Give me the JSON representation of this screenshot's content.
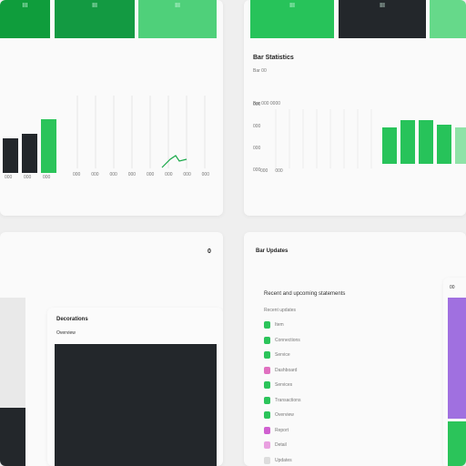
{
  "top_left": {
    "tabs": [
      "III",
      "III",
      "III"
    ],
    "bars": [
      38,
      43,
      59
    ],
    "bar_labels": [
      "000",
      "000",
      "000"
    ],
    "line_labels": [
      "000",
      "000",
      "000",
      "000",
      "000",
      "000",
      "000",
      "000"
    ]
  },
  "top_right": {
    "tabs": [
      "III",
      "III"
    ],
    "title": "Bar Statistics",
    "subtitle": "Bar 00",
    "chart_label": "Bar 000 0000",
    "y_labels": [
      "000",
      "000",
      "000",
      "000"
    ],
    "x_labels": [
      "000",
      "000"
    ],
    "bars": [
      40,
      48,
      48,
      43,
      40
    ]
  },
  "bottom_left": {
    "badge": "0",
    "card_title": "Decorations",
    "card_subtitle": "Overview"
  },
  "bottom_right": {
    "title": "Bar Updates",
    "subtitle": "Recent and upcoming statements",
    "section": "Recent updates",
    "items": [
      "Item",
      "Connections",
      "Service",
      "Dashboard",
      "Services",
      "Transactions",
      "Overview",
      "Report",
      "Detail",
      "Updates"
    ],
    "tag": "00"
  }
}
